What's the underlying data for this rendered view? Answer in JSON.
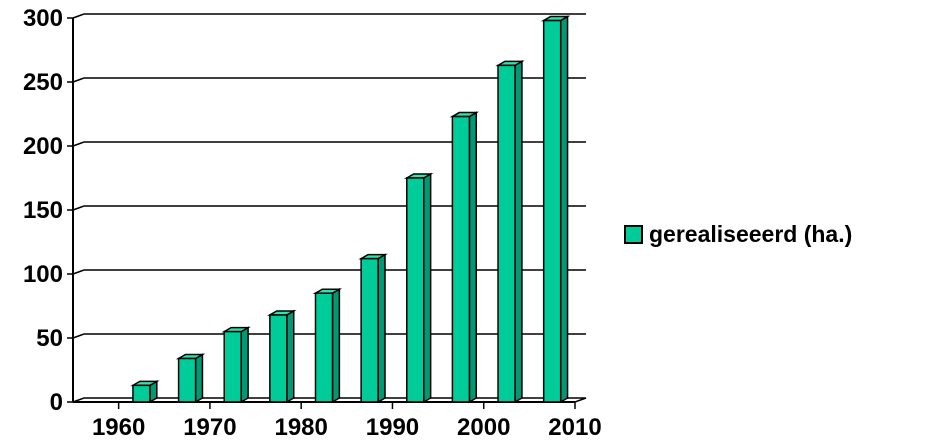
{
  "chart_data": {
    "type": "bar",
    "x": [
      1960,
      1965,
      1970,
      1975,
      1980,
      1985,
      1990,
      1995,
      2000,
      2005
    ],
    "series": [
      {
        "name": "gerealiseeerd (ha.)",
        "values": [
          13,
          34,
          55,
          68,
          85,
          112,
          175,
          223,
          263,
          298
        ]
      }
    ],
    "xticks": [
      "1960",
      "1970",
      "1980",
      "1990",
      "2000",
      "2010"
    ],
    "yticks": [
      "0",
      "50",
      "100",
      "150",
      "200",
      "250",
      "300"
    ],
    "xlim": [
      1955,
      2010
    ],
    "ylim": [
      0,
      300
    ],
    "grid": true,
    "legend": "right",
    "colors": {
      "bar": "#00cc99",
      "bar_side": "#009974",
      "bar_top": "#33e0b0",
      "grid": "#000000"
    }
  }
}
